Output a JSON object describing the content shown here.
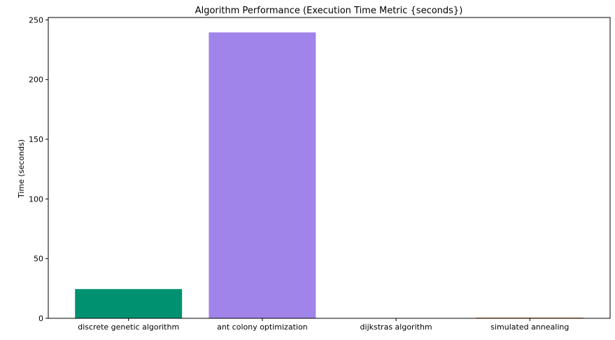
{
  "chart_data": {
    "type": "bar",
    "title": "Algorithm Performance (Execution Time Metric {seconds})",
    "xlabel": "",
    "ylabel": "Time (seconds)",
    "categories": [
      "discrete genetic algorithm",
      "ant colony optimization",
      "dijkstras algorithm",
      "simulated annealing"
    ],
    "values": [
      24.5,
      239.5,
      0.05,
      0.6
    ],
    "colors": [
      "#009270",
      "#a084ea",
      "#1f77b4",
      "#e07b39"
    ],
    "ylim": [
      0,
      252
    ],
    "yticks": [
      0,
      50,
      100,
      150,
      200,
      250
    ],
    "grid": false,
    "legend": false
  }
}
